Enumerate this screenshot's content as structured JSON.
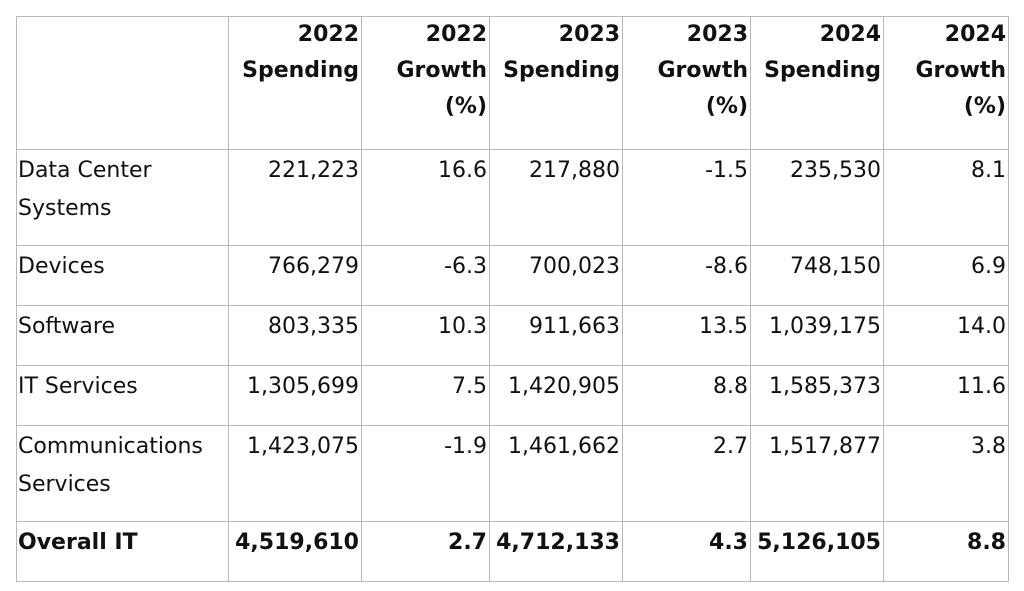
{
  "table": {
    "headers": [
      [
        ""
      ],
      [
        "2022",
        "Spending"
      ],
      [
        "2022",
        "Growth",
        "(%)"
      ],
      [
        "2023",
        "Spending"
      ],
      [
        "2023",
        "Growth",
        "(%)"
      ],
      [
        "2024",
        "Spending"
      ],
      [
        "2024",
        "Growth",
        "(%)"
      ]
    ],
    "rows": [
      {
        "label": [
          "Data Center",
          "Systems"
        ],
        "values": [
          "221,223",
          "16.6",
          "217,880",
          "-1.5",
          "235,530",
          "8.1"
        ]
      },
      {
        "label": [
          "Devices"
        ],
        "values": [
          "766,279",
          "-6.3",
          "700,023",
          "-8.6",
          "748,150",
          "6.9"
        ]
      },
      {
        "label": [
          "Software"
        ],
        "values": [
          "803,335",
          "10.3",
          "911,663",
          "13.5",
          "1,039,175",
          "14.0"
        ]
      },
      {
        "label": [
          "IT Services"
        ],
        "values": [
          "1,305,699",
          "7.5",
          "1,420,905",
          "8.8",
          "1,585,373",
          "11.6"
        ]
      },
      {
        "label": [
          "Communications",
          "Services"
        ],
        "values": [
          "1,423,075",
          "-1.9",
          "1,461,662",
          "2.7",
          "1,517,877",
          "3.8"
        ]
      },
      {
        "label": [
          "Overall IT"
        ],
        "values": [
          "4,519,610",
          "2.7",
          "4,712,133",
          "4.3",
          "5,126,105",
          "8.8"
        ],
        "total": true
      }
    ]
  }
}
